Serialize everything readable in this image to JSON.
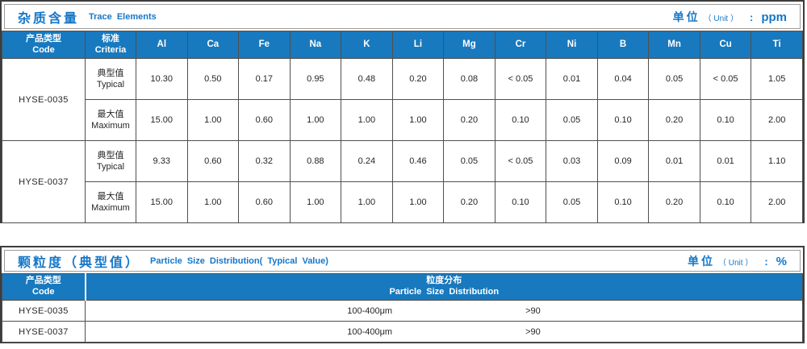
{
  "colors": {
    "accent_blue": "#1577c8",
    "header_blue": "#1879be"
  },
  "table1": {
    "title_cn": "杂质含量",
    "title_en": "Trace Elements",
    "unit_cn": "单位",
    "unit_en": "（ Unit ）",
    "unit_colon": ":",
    "unit_value": "ppm",
    "col1_header": {
      "cn": "产品类型",
      "en": "Code"
    },
    "col2_header": {
      "cn": "标准",
      "en": "Criteria"
    },
    "element_headers": [
      "Al",
      "Ca",
      "Fe",
      "Na",
      "K",
      "Li",
      "Mg",
      "Cr",
      "Ni",
      "B",
      "Mn",
      "Cu",
      "Ti"
    ],
    "products": [
      {
        "code": "HYSE-0035",
        "rows": [
          {
            "criteria_cn": "典型值",
            "criteria_en": "Typical",
            "values": [
              "10.30",
              "0.50",
              "0.17",
              "0.95",
              "0.48",
              "0.20",
              "0.08",
              "< 0.05",
              "0.01",
              "0.04",
              "0.05",
              "< 0.05",
              "1.05"
            ]
          },
          {
            "criteria_cn": "最大值",
            "criteria_en": "Maximum",
            "values": [
              "15.00",
              "1.00",
              "0.60",
              "1.00",
              "1.00",
              "1.00",
              "0.20",
              "0.10",
              "0.05",
              "0.10",
              "0.20",
              "0.10",
              "2.00"
            ]
          }
        ]
      },
      {
        "code": "HYSE-0037",
        "rows": [
          {
            "criteria_cn": "典型值",
            "criteria_en": "Typical",
            "values": [
              "9.33",
              "0.60",
              "0.32",
              "0.88",
              "0.24",
              "0.46",
              "0.05",
              "< 0.05",
              "0.03",
              "0.09",
              "0.01",
              "0.01",
              "1.10"
            ]
          },
          {
            "criteria_cn": "最大值",
            "criteria_en": "Maximum",
            "values": [
              "15.00",
              "1.00",
              "0.60",
              "1.00",
              "1.00",
              "1.00",
              "0.20",
              "0.10",
              "0.05",
              "0.10",
              "0.20",
              "0.10",
              "2.00"
            ]
          }
        ]
      }
    ]
  },
  "table2": {
    "title_cn": "颗粒度（典型值）",
    "title_en": "Particle Size Distribution( Typical Value)",
    "unit_cn": "单位",
    "unit_en": "（ Unit ）",
    "unit_colon": ":",
    "unit_value": "%",
    "col1_header": {
      "cn": "产品类型",
      "en": "Code"
    },
    "dist_header": {
      "cn": "粒度分布",
      "en": "Particle Size Distribution"
    },
    "rows": [
      {
        "code": "HYSE-0035",
        "range": "100-400μm",
        "value": ">90"
      },
      {
        "code": "HYSE-0037",
        "range": "100-400μm",
        "value": ">90"
      }
    ]
  }
}
